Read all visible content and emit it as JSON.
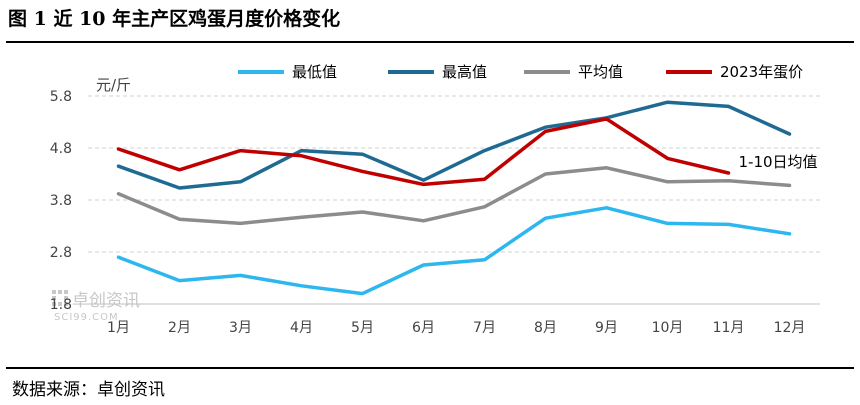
{
  "title": "图 1 近 10 年主产区鸡蛋月度价格变化",
  "source": "数据来源：卓创资讯",
  "watermark": {
    "cn": "卓创资讯",
    "en": "SCI99.COM"
  },
  "chart_data": {
    "type": "line",
    "unit_label": "元/斤",
    "categories": [
      "1月",
      "2月",
      "3月",
      "4月",
      "5月",
      "6月",
      "7月",
      "8月",
      "9月",
      "10月",
      "11月",
      "12月"
    ],
    "yticks": [
      "1.8",
      "2.8",
      "3.8",
      "4.8",
      "5.8"
    ],
    "ylim": [
      1.8,
      5.8
    ],
    "grid": "horizontal dashed",
    "legend_position": "top",
    "series": [
      {
        "name": "最低值",
        "color": "#2db7ee",
        "values": [
          2.7,
          2.25,
          2.35,
          2.15,
          2.0,
          2.55,
          2.65,
          3.45,
          3.65,
          3.35,
          3.33,
          3.15
        ]
      },
      {
        "name": "最高值",
        "color": "#1f6a93",
        "values": [
          4.45,
          4.03,
          4.15,
          4.75,
          4.68,
          4.18,
          4.75,
          5.2,
          5.38,
          5.68,
          5.6,
          5.07
        ]
      },
      {
        "name": "平均值",
        "color": "#8c8c8c",
        "values": [
          3.92,
          3.43,
          3.35,
          3.47,
          3.57,
          3.4,
          3.67,
          4.3,
          4.42,
          4.15,
          4.17,
          4.08
        ]
      },
      {
        "name": "2023年蛋价",
        "color": "#c00000",
        "values": [
          4.78,
          4.38,
          4.75,
          4.65,
          4.35,
          4.1,
          4.2,
          5.12,
          5.36,
          4.6,
          4.32,
          null
        ]
      }
    ],
    "annotation": "1-10日均值"
  }
}
